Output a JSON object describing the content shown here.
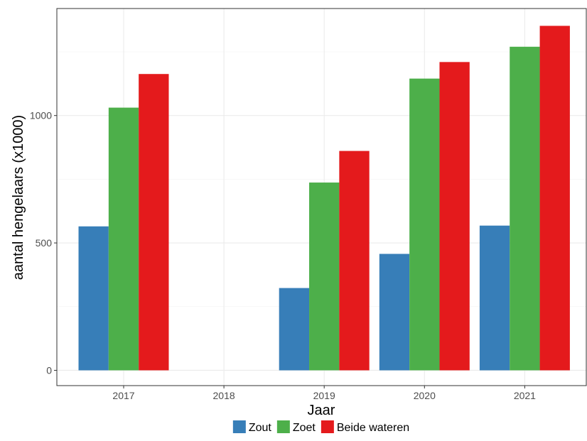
{
  "chart_data": {
    "type": "bar",
    "categories": [
      "2017",
      "2018",
      "2019",
      "2020",
      "2021"
    ],
    "series": [
      {
        "name": "Zout",
        "color": "#377eb8",
        "values": [
          565,
          null,
          323,
          457,
          568
        ]
      },
      {
        "name": "Zoet",
        "color": "#4daf4a",
        "values": [
          1031,
          null,
          737,
          1145,
          1270
        ]
      },
      {
        "name": "Beide wateren",
        "color": "#e41a1c",
        "values": [
          1163,
          null,
          861,
          1210,
          1352
        ]
      }
    ],
    "xlabel": "Jaar",
    "ylabel": "aantal hengelaars (x1000)",
    "ylim": [
      -60,
      1420
    ],
    "yticks": [
      0,
      500,
      1000
    ],
    "grid": true,
    "legend_position": "bottom"
  }
}
